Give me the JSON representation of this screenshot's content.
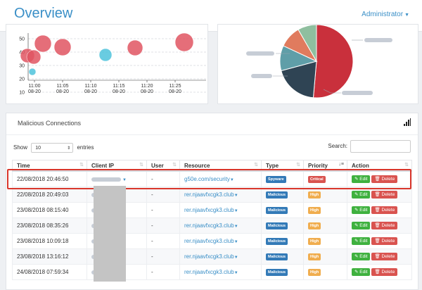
{
  "header": {
    "title": "Overview",
    "user_menu": "Administrator"
  },
  "bubble_chart": {
    "y_ticks": [
      "50",
      "40",
      "30",
      "20",
      "10"
    ],
    "x_ticks": [
      {
        "time": "11:00",
        "date": "08-20"
      },
      {
        "time": "11:05",
        "date": "08-20"
      },
      {
        "time": "11:10",
        "date": "08-20"
      },
      {
        "time": "11:15",
        "date": "08-20"
      },
      {
        "time": "11:20",
        "date": "08-20"
      },
      {
        "time": "11:25",
        "date": "08-20"
      }
    ]
  },
  "pie_chart": {},
  "colors": {
    "accent": "#3a8fc7",
    "bubble_red": "#e05561",
    "bubble_cyan": "#4fc3dc",
    "pie": [
      "#c9303c",
      "#2f4454",
      "#5f9ea8",
      "#e07b5e",
      "#8fbf9f"
    ],
    "critical": "#d9534f",
    "high": "#f0ad4e",
    "type_badge": "#337ab7",
    "highlight": "#d9362b"
  },
  "table_panel": {
    "title": "Malicious Connections",
    "show_label": "Show",
    "page_size": "10",
    "entries_label": "entries",
    "search_label": "Search:",
    "columns": [
      "Time",
      "Client IP",
      "User",
      "Resource",
      "Type",
      "Priority",
      "Action"
    ],
    "rows": [
      {
        "time": "22/08/2018 20:46:50",
        "user": "-",
        "resource": "g50e.com/security",
        "type": "Spyware",
        "priority": "Critical"
      },
      {
        "time": "22/08/2018 20:49:03",
        "user": "-",
        "resource": "rer.njaavfxcgk3.club",
        "type": "Malicious",
        "priority": "High"
      },
      {
        "time": "23/08/2018 08:15:40",
        "user": "-",
        "resource": "rer.njaavfxcgk3.club",
        "type": "Malicious",
        "priority": "High"
      },
      {
        "time": "23/08/2018 08:35:26",
        "user": "-",
        "resource": "rer.njaavfxcgk3.club",
        "type": "Malicious",
        "priority": "High"
      },
      {
        "time": "23/08/2018 10:09:18",
        "user": "-",
        "resource": "rer.njaavfxcgk3.club",
        "type": "Malicious",
        "priority": "High"
      },
      {
        "time": "23/08/2018 13:16:12",
        "user": "-",
        "resource": "rer.njaavfxcgk3.club",
        "type": "Malicious",
        "priority": "High"
      },
      {
        "time": "24/08/2018 07:59:34",
        "user": "-",
        "resource": "rer.njaavfxcgk3.club",
        "type": "Malicious",
        "priority": "High"
      }
    ],
    "action_edit": "Edit",
    "action_delete": "Delete"
  }
}
